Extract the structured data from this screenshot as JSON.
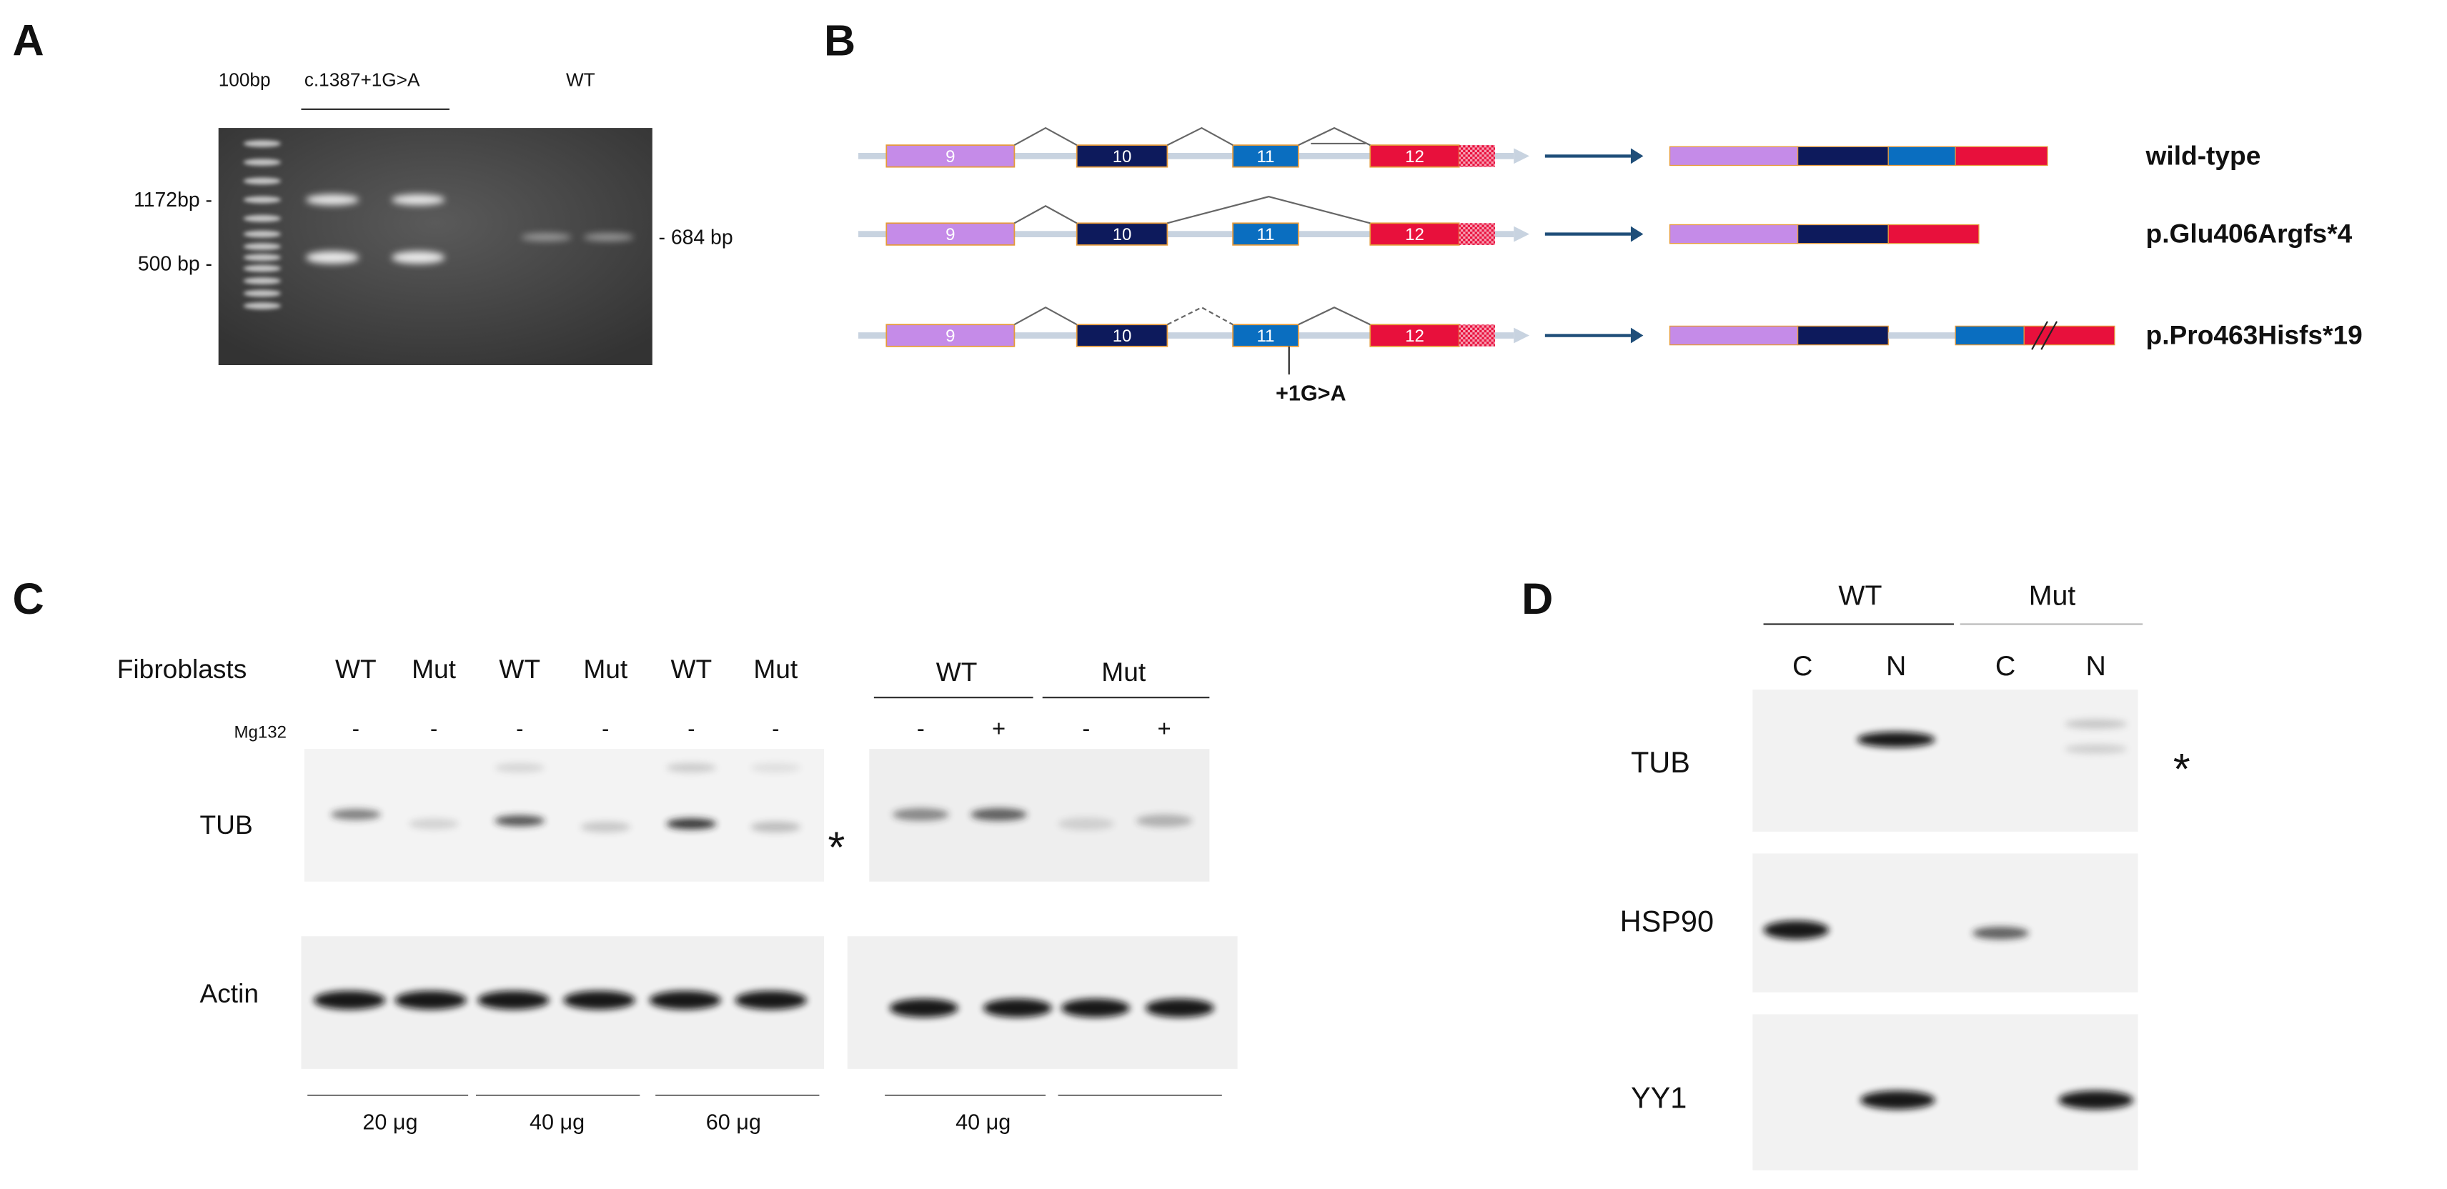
{
  "panel_a": {
    "label": "A",
    "ladder": "100bp",
    "mutant": "c.1387+1G>A",
    "wild_type": "WT",
    "markers": [
      "1172bp -",
      "500 bp -"
    ],
    "band_size": "- 684 bp"
  },
  "panel_b": {
    "label": "B",
    "exons": [
      "9",
      "10",
      "11",
      "12"
    ],
    "variant": "+1G>A",
    "transcripts": [
      "wild-type",
      "p.Glu406Argfs*4",
      "p.Pro463Hisfs*19"
    ]
  },
  "panel_c": {
    "label": "C",
    "cell_type": "Fibroblasts",
    "lanes": [
      "WT",
      "Mut",
      "WT",
      "Mut",
      "WT",
      "Mut"
    ],
    "treatment": "Mg132",
    "treatment_states": [
      "-",
      "-",
      "-",
      "-",
      "-",
      "-"
    ],
    "groups": [
      "WT",
      "Mut"
    ],
    "group_treatment": [
      "-",
      "+",
      "-",
      "+"
    ],
    "proteins": [
      "TUB",
      "Actin"
    ],
    "marker": "*",
    "loadings": [
      "20 μg",
      "40 μg",
      "60 μg",
      "40 μg"
    ]
  },
  "panel_d": {
    "label": "D",
    "groups": [
      "WT",
      "Mut"
    ],
    "fractions": [
      "C",
      "N",
      "C",
      "N"
    ],
    "proteins": [
      "TUB",
      "HSP90",
      "YY1"
    ],
    "marker": "*"
  }
}
